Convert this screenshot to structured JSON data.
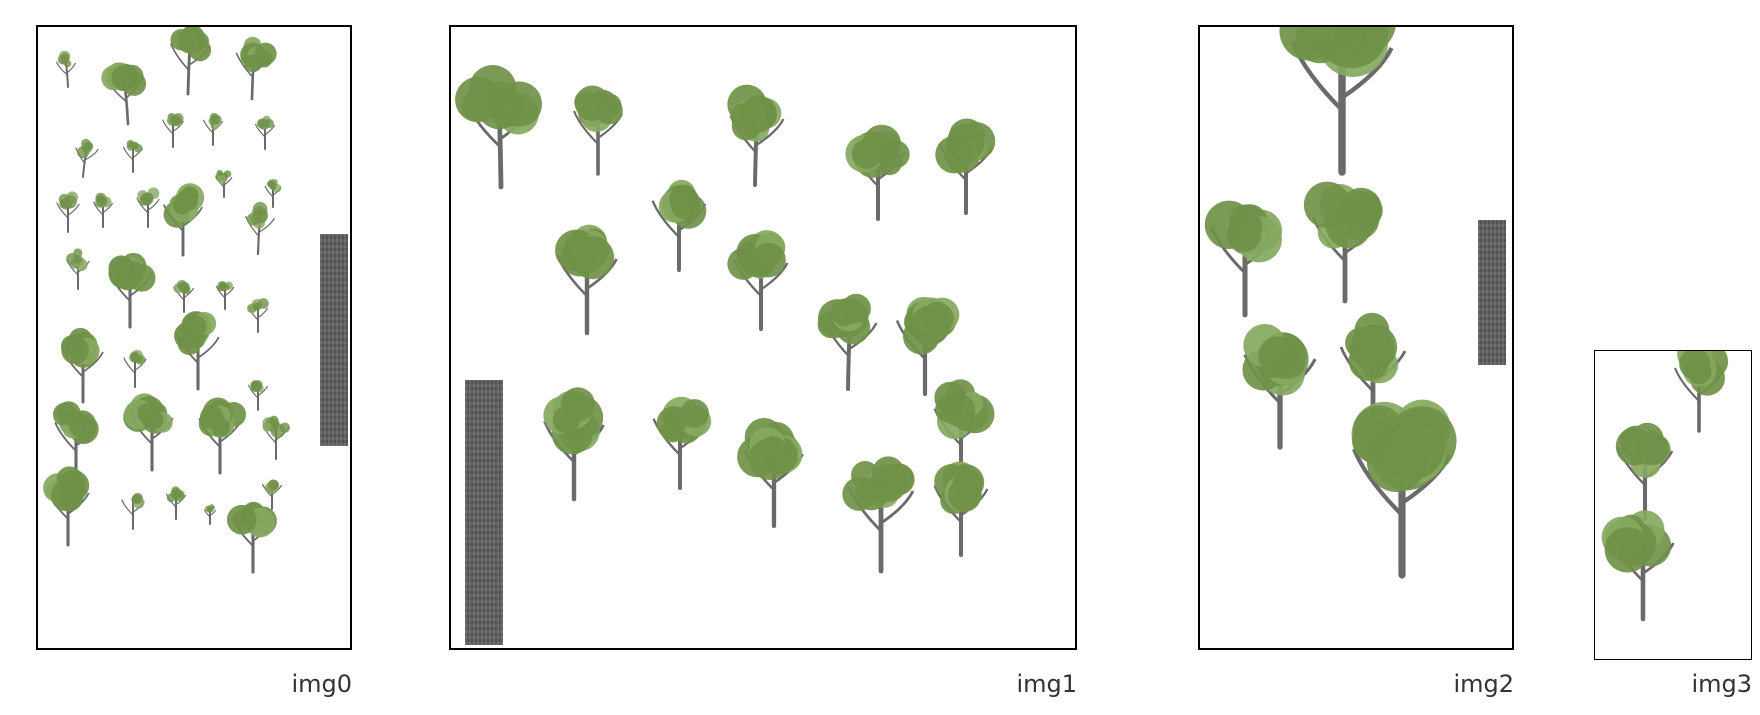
{
  "panels": [
    {
      "caption": "img0"
    },
    {
      "caption": "img1"
    },
    {
      "caption": "img2"
    },
    {
      "caption": "img3"
    }
  ],
  "colors": {
    "foliage": "#6f9148",
    "foliage_light": "#86a860",
    "trunk": "#6a6a6a",
    "bark_strip": "#5f5f5f",
    "border": "#000000"
  }
}
